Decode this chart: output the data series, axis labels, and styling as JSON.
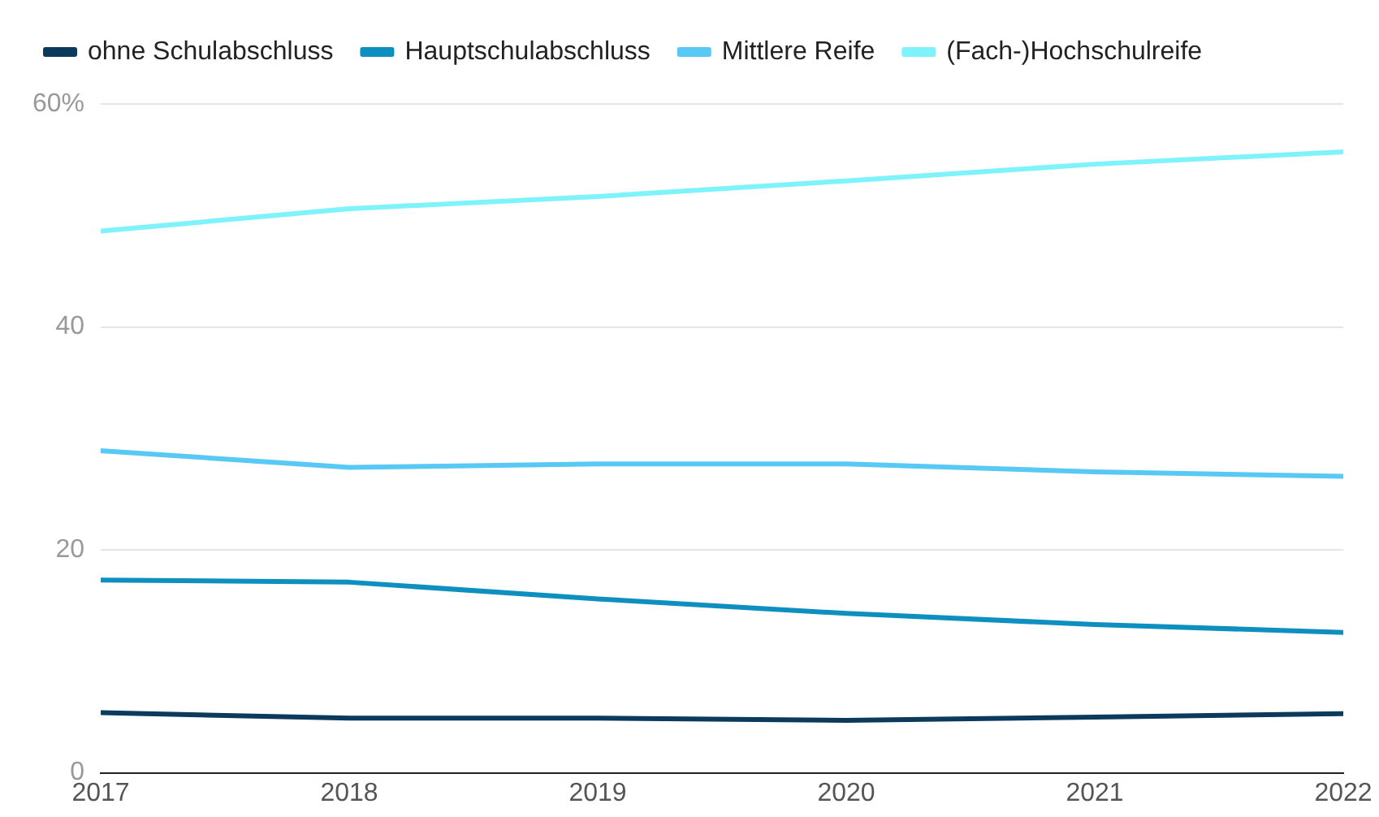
{
  "chart_data": {
    "type": "line",
    "x": [
      2017,
      2018,
      2019,
      2020,
      2021,
      2022
    ],
    "xlim": [
      2017,
      2022
    ],
    "xticks": [
      2017,
      2018,
      2019,
      2020,
      2021,
      2022
    ],
    "ylim": [
      0,
      60
    ],
    "yticks": [
      0,
      20,
      40,
      {
        "value": 60,
        "label": "60%"
      }
    ],
    "grid": "y",
    "legend": "top left",
    "marker": "none",
    "line_style": "solid",
    "series": [
      {
        "name": "ohne Schulabschluss",
        "color": "#0b3a5c",
        "values": [
          5.4,
          4.9,
          4.9,
          4.7,
          5.0,
          5.3
        ]
      },
      {
        "name": "Hauptschulabschluss",
        "color": "#0d8fc0",
        "values": [
          17.3,
          17.1,
          15.6,
          14.3,
          13.3,
          12.6
        ]
      },
      {
        "name": "Mittlere Reife",
        "color": "#58c8f5",
        "values": [
          28.9,
          27.4,
          27.7,
          27.7,
          27.0,
          26.6
        ]
      },
      {
        "name": "(Fach-)Hochschulreife",
        "color": "#7ef3fb",
        "values": [
          48.6,
          50.6,
          51.7,
          53.1,
          54.6,
          55.7
        ]
      }
    ]
  }
}
